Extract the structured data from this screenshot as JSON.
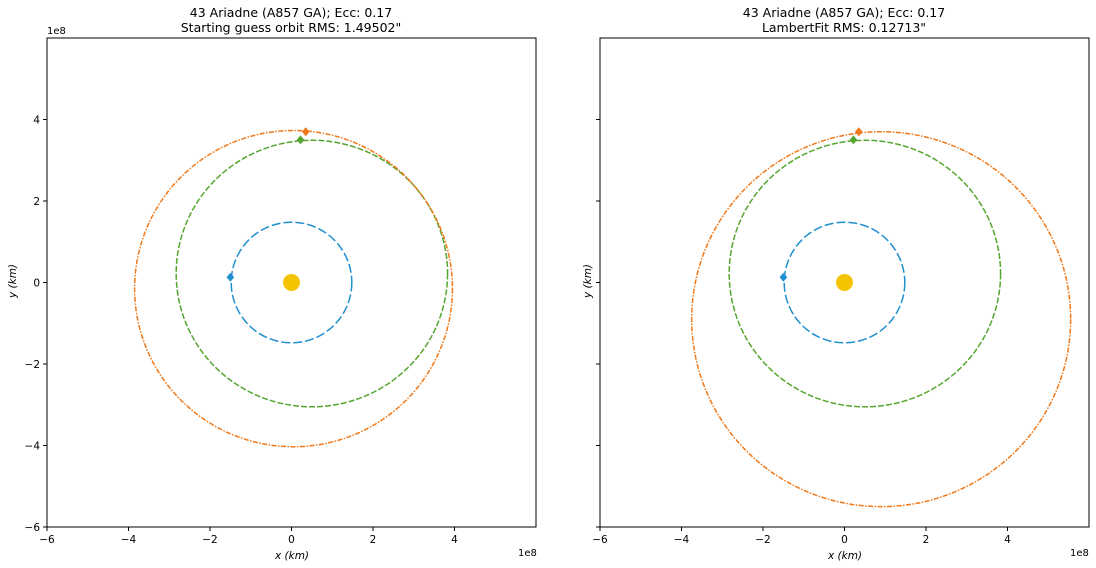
{
  "chart_data": [
    {
      "type": "line",
      "title": "43 Ariadne (A857 GA); Ecc: 0.17",
      "subtitle": "Starting guess orbit RMS: 1.49502\"",
      "xlabel": "x (km)",
      "ylabel": "y (km)",
      "xlim": [
        -6,
        6
      ],
      "ylim": [
        -6,
        6
      ],
      "scale_label": "1e8",
      "xticks": [
        -6,
        -4,
        -2,
        0,
        2,
        4
      ],
      "yticks": [
        -6,
        -4,
        -2,
        0,
        2,
        4
      ],
      "show_yticklabels": true,
      "grid": false,
      "sun": {
        "x": 0,
        "y": 0,
        "color": "#f5c400"
      },
      "orbits": [
        {
          "color": "#1f8fd0",
          "cx": 0,
          "cy": 0,
          "rx": 1.48,
          "ry": 1.48,
          "dash": "long"
        },
        {
          "color": "#55a630",
          "cx": 0.5,
          "cy": 0.22,
          "rx": 3.33,
          "ry": 3.27,
          "dash": "short"
        },
        {
          "color": "#f07818",
          "cx": 0.05,
          "cy": -0.15,
          "rx": 3.9,
          "ry": 3.88,
          "dash": "dashdot"
        }
      ],
      "markers": [
        {
          "color": "#1f8fd0",
          "x": -1.5,
          "y": 0.13
        },
        {
          "color": "#55a630",
          "x": 0.22,
          "y": 3.5
        },
        {
          "color": "#f07818",
          "x": 0.35,
          "y": 3.7
        }
      ]
    },
    {
      "type": "line",
      "title": "43 Ariadne (A857 GA); Ecc: 0.17",
      "subtitle": "LambertFit RMS: 0.12713\"",
      "xlabel": "x (km)",
      "ylabel": "y (km)",
      "xlim": [
        -6,
        6
      ],
      "ylim": [
        -6,
        6
      ],
      "scale_label": "1e8",
      "xticks": [
        -6,
        -4,
        -2,
        0,
        2,
        4
      ],
      "yticks": [
        -6,
        -4,
        -2,
        0,
        2,
        4
      ],
      "show_yticklabels": false,
      "grid": false,
      "sun": {
        "x": 0,
        "y": 0,
        "color": "#f5c400"
      },
      "orbits": [
        {
          "color": "#1f8fd0",
          "cx": 0,
          "cy": 0,
          "rx": 1.48,
          "ry": 1.48,
          "dash": "long"
        },
        {
          "color": "#55a630",
          "cx": 0.5,
          "cy": 0.22,
          "rx": 3.33,
          "ry": 3.27,
          "dash": "short"
        },
        {
          "color": "#f07818",
          "cx": 0.9,
          "cy": -0.9,
          "rx": 4.65,
          "ry": 4.6,
          "dash": "dashdot"
        }
      ],
      "markers": [
        {
          "color": "#1f8fd0",
          "x": -1.5,
          "y": 0.13
        },
        {
          "color": "#55a630",
          "x": 0.22,
          "y": 3.5
        },
        {
          "color": "#f07818",
          "x": 0.35,
          "y": 3.7
        }
      ]
    }
  ]
}
